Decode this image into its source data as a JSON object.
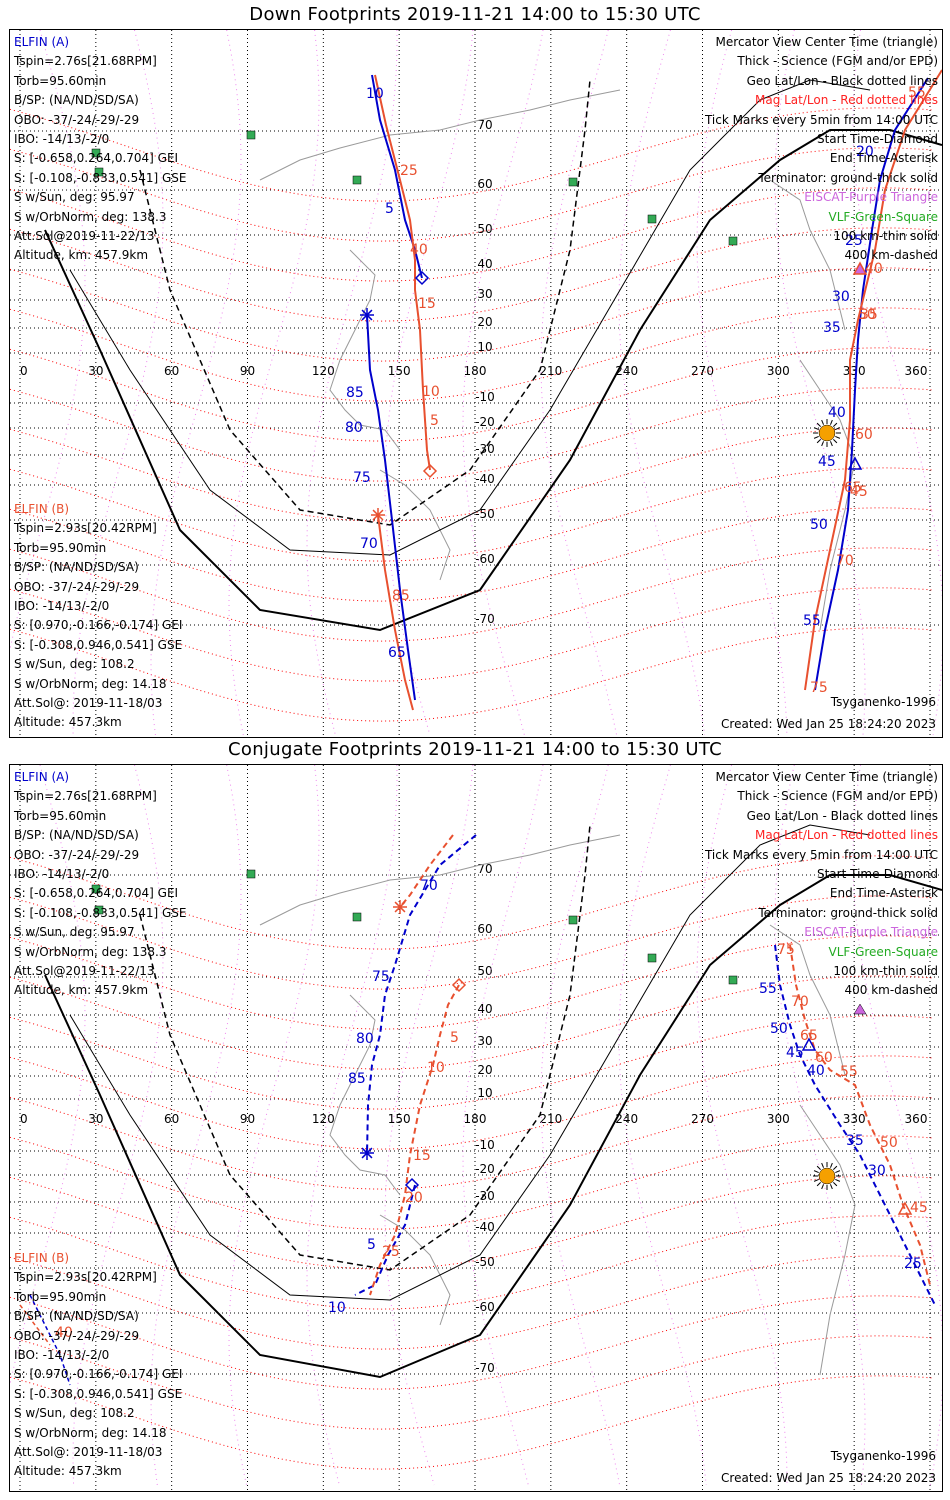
{
  "panels": [
    {
      "title": "Down Footprints 2019-11-21 14:00 to 15:30 UTC",
      "elfin_a": {
        "name": "ELFIN (A)",
        "lines": [
          "Tspin=2.76s[21.68RPM]",
          "Torb=95.60min",
          "B/SP: (NA/ND/SD/SA)",
          "OBO: -37/-24/-29/-29",
          "IBO: -14/13/-2/0",
          "S: [-0.658,0.264,0.704] GEI",
          "S: [-0.108,-0.833,0.541] GSE",
          "S w/Sun, deg: 95.97",
          "S w/OrbNorm, deg: 138.3",
          "Att.Sol@2019-11-22/13",
          "Altitude, km: 457.9km"
        ]
      },
      "elfin_b": {
        "name": "ELFIN (B)",
        "lines": [
          "Tspin=2.93s[20.42RPM]",
          "Torb=95.90min",
          "B/SP: (NA/ND/SD/SA)",
          "OBO: -37/-24/-29/-29",
          "IBO: -14/13/-2/0",
          "S: [0.970,-0.166,-0.174] GEI",
          "S: [-0.308,0.946,0.541] GSE",
          "S w/Sun, deg: 108.2",
          "S w/OrbNorm, deg: 14.18",
          "Att.Sol@: 2019-11-18/03",
          "Altitude: 457.3km"
        ]
      },
      "labels_a": [
        "10",
        "25",
        "5",
        "40",
        "15",
        "85",
        "80",
        "75",
        "70",
        "65",
        "20",
        "25",
        "30",
        "35",
        "40",
        "45",
        "50",
        "55"
      ],
      "labels_b": [
        "35",
        "45",
        "50",
        "55",
        "60",
        "65",
        "70",
        "75",
        "40",
        "10",
        "5",
        "15",
        "85",
        "20"
      ]
    },
    {
      "title": "Conjugate Footprints 2019-11-21 14:00 to 15:30 UTC",
      "elfin_a": {
        "name": "ELFIN (A)",
        "lines": [
          "Tspin=2.76s[21.68RPM]",
          "Torb=95.60min",
          "B/SP: (NA/ND/SD/SA)",
          "OBO: -37/-24/-29/-29",
          "IBO: -14/13/-2/0",
          "S: [-0.658,0.264,0.704] GEI",
          "S: [-0.108,-0.833,0.541] GSE",
          "S w/Sun, deg: 95.97",
          "S w/OrbNorm, deg: 138.3",
          "Att.Sol@2019-11-22/13",
          "Altitude, km: 457.9km"
        ]
      },
      "elfin_b": {
        "name": "ELFIN (B)",
        "lines": [
          "Tspin=2.93s[20.42RPM]",
          "Torb=95.90min",
          "B/SP: (NA/ND/SD/SA)",
          "OBO: -37/-24/-29/-29",
          "IBO: -14/13/-2/0",
          "S: [0.970,-0.166,-0.174] GEI",
          "S: [-0.308,0.946,0.541] GSE",
          "S w/Sun, deg: 108.2",
          "S w/OrbNorm, deg: 14.18",
          "Att.Sol@: 2019-11-18/03",
          "Altitude: 457.3km"
        ]
      },
      "labels_a": [
        "70",
        "75",
        "80",
        "85",
        "5",
        "10",
        "55",
        "50",
        "45",
        "40",
        "35",
        "30",
        "25"
      ],
      "labels_b": [
        "5",
        "10",
        "15",
        "20",
        "25",
        "75",
        "70",
        "65",
        "60",
        "55",
        "50",
        "45",
        "40"
      ]
    }
  ],
  "legend": {
    "view": "Mercator View Center Time (triangle)",
    "thick": "Thick - Science (FGM and/or EPD)",
    "geo": "Geo Lat/Lon - Black dotted lines",
    "mag": "Mag Lat/Lon - Red dotted lines",
    "ticks": "Tick Marks every 5min from 14:00 UTC",
    "start": "Start Time-Diamond",
    "end": "End Time-Asterisk",
    "terminator": "Terminator: ground-thick solid",
    "eiscat": "EISCAT-Purple Triangle",
    "vlf": "VLF-Green-Square",
    "km100": "100 km-thin solid",
    "km400": "400 km-dashed"
  },
  "model": "Tsyganenko-1996",
  "created": "Created: Wed Jan 25 18:24:20 2023",
  "lon_ticks": [
    "0",
    "30",
    "60",
    "90",
    "120",
    "150",
    "180",
    "210",
    "240",
    "270",
    "300",
    "330",
    "360"
  ],
  "lat_ticks_down": [
    "70",
    "60",
    "50",
    "40",
    "30",
    "20",
    "10",
    "-10",
    "-20",
    "-30",
    "-40",
    "-50",
    "-60",
    "-70"
  ],
  "lat_ticks_conj": [
    "70",
    "60",
    "50",
    "40",
    "30",
    "20",
    "10",
    "-10",
    "-20",
    "-30",
    "-40",
    "-50",
    "-60",
    "-70"
  ],
  "colors": {
    "elfin_a": "#0000cc",
    "elfin_b": "#e8502f",
    "mag_grid": "#ff0000",
    "terminator": "#000000",
    "vlf": "#33aa55",
    "eiscat": "#cc66dd",
    "sun": "#f5a000"
  },
  "icons": {
    "sun": "sun-icon",
    "start": "diamond-icon",
    "end": "asterisk-icon",
    "center": "triangle-icon",
    "station": "square-icon"
  }
}
